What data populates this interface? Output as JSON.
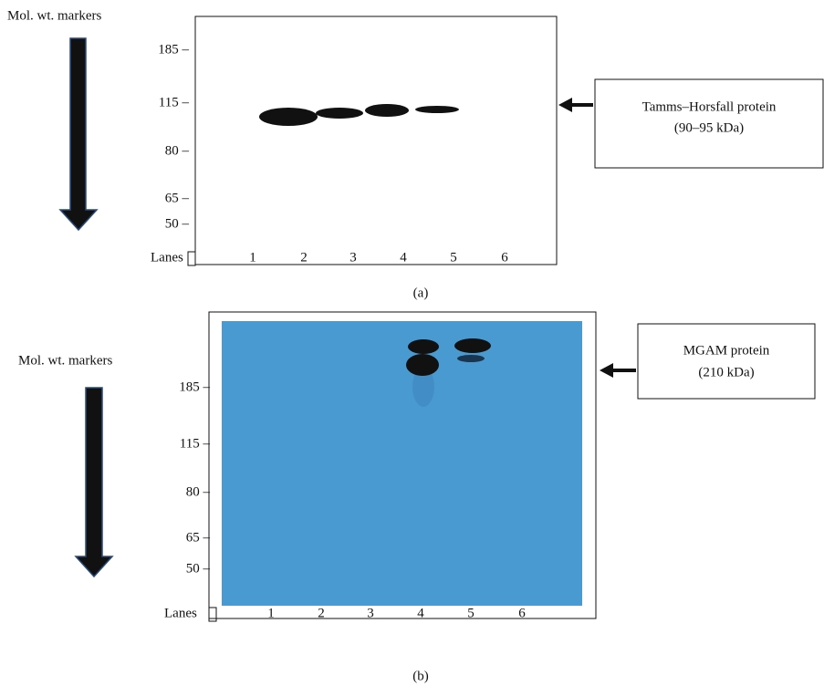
{
  "panels": [
    {
      "markers_label": "Mol. wt. markers",
      "marker_ticks": [
        "185 –",
        "115 –",
        "80 –",
        "65 –",
        "50 –"
      ],
      "lanes_label": "Lanes",
      "lanes": [
        "1",
        "2",
        "3",
        "4",
        "5",
        "6"
      ],
      "annotation": [
        "Tamms–Horsfall protein",
        "(90–95 kDa)"
      ],
      "caption": "(a)"
    },
    {
      "markers_label": "Mol. wt. markers",
      "marker_ticks": [
        "185 –",
        "115 –",
        "80 –",
        "65 –",
        "50 –"
      ],
      "lanes_label": "Lanes",
      "lanes": [
        "1",
        "2",
        "3",
        "4",
        "5",
        "6"
      ],
      "annotation": [
        "MGAM protein",
        "(210 kDa)"
      ],
      "caption": "(b)"
    }
  ]
}
